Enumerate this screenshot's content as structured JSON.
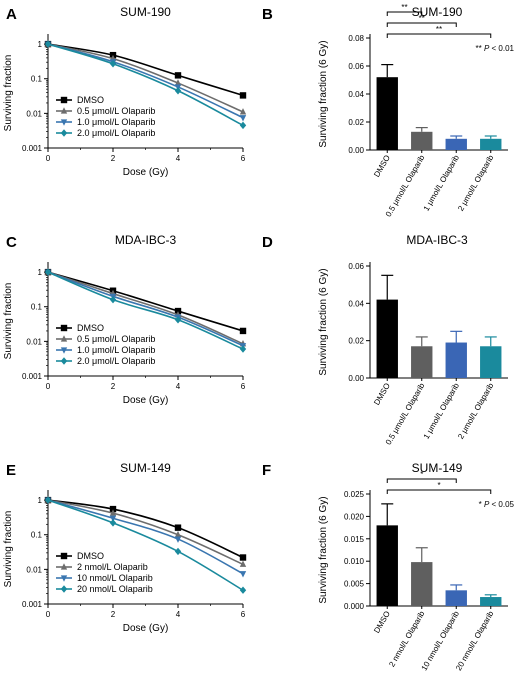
{
  "chart_data": [
    {
      "panel": "A",
      "type": "line",
      "title": "SUM-190",
      "xlabel": "Dose (Gy)",
      "ylabel": "Surviving fraction",
      "x": [
        0,
        2,
        4,
        6
      ],
      "xticks": [
        "0",
        "2",
        "4",
        "6"
      ],
      "ylog": true,
      "ylim": [
        0.001,
        1.5
      ],
      "yticks": [
        "0.001",
        "0.01",
        "0.1",
        "1"
      ],
      "legend_position": "bottom-left",
      "series": [
        {
          "name": "DMSO",
          "color": "#000000",
          "marker": "square",
          "values": [
            1,
            0.48,
            0.125,
            0.033
          ]
        },
        {
          "name": "0.5 μmol/L Olaparib",
          "color": "#6d6d6d",
          "marker": "triangle-up",
          "values": [
            1,
            0.38,
            0.075,
            0.011
          ]
        },
        {
          "name": "1.0 μmol/L Olaparib",
          "color": "#3a76b0",
          "marker": "triangle-down",
          "values": [
            1,
            0.31,
            0.058,
            0.0075
          ]
        },
        {
          "name": "2.0 μmol/L Olaparib",
          "color": "#1a8a9d",
          "marker": "diamond",
          "values": [
            1,
            0.27,
            0.045,
            0.0045
          ]
        }
      ]
    },
    {
      "panel": "B",
      "type": "bar",
      "title": "SUM-190",
      "ylabel": "Surviving fraction (6 Gy)",
      "categories": [
        "DMSO",
        "0.5 μmol/L Olaparib",
        "1 μmol/L Olaparib",
        "2 μmol/L Olaparib"
      ],
      "values": [
        0.052,
        0.013,
        0.008,
        0.008
      ],
      "errors": [
        0.009,
        0.003,
        0.002,
        0.002
      ],
      "colors": [
        "#000000",
        "#5f5f5f",
        "#3a66b5",
        "#1a8a9d"
      ],
      "ylim": [
        0,
        0.08
      ],
      "yticks": [
        "0.00",
        "0.02",
        "0.04",
        "0.06",
        "0.08"
      ],
      "significance": [
        {
          "from": 0,
          "to": 1,
          "label": "**"
        },
        {
          "from": 0,
          "to": 2,
          "label": "**"
        },
        {
          "from": 0,
          "to": 3,
          "label": "**"
        }
      ],
      "annotation": "** P < 0.01"
    },
    {
      "panel": "C",
      "type": "line",
      "title": "MDA-IBC-3",
      "xlabel": "Dose (Gy)",
      "ylabel": "Surviving fraction",
      "x": [
        0,
        2,
        4,
        6
      ],
      "xticks": [
        "0",
        "2",
        "4",
        "6"
      ],
      "ylog": true,
      "ylim": [
        0.001,
        1.5
      ],
      "yticks": [
        "0.001",
        "0.01",
        "0.1",
        "1"
      ],
      "legend_position": "bottom-left",
      "series": [
        {
          "name": "DMSO",
          "color": "#000000",
          "marker": "square",
          "values": [
            1,
            0.29,
            0.075,
            0.02
          ]
        },
        {
          "name": "0.5 μmol/L Olaparib",
          "color": "#6d6d6d",
          "marker": "triangle-up",
          "values": [
            1,
            0.24,
            0.058,
            0.0085
          ]
        },
        {
          "name": "1.0 μmol/L Olaparib",
          "color": "#3a76b0",
          "marker": "triangle-down",
          "values": [
            1,
            0.2,
            0.05,
            0.0075
          ]
        },
        {
          "name": "2.0 μmol/L Olaparib",
          "color": "#1a8a9d",
          "marker": "diamond",
          "values": [
            1,
            0.16,
            0.042,
            0.006
          ]
        }
      ]
    },
    {
      "panel": "D",
      "type": "bar",
      "title": "MDA-IBC-3",
      "ylabel": "Surviving fraction (6 Gy)",
      "categories": [
        "DMSO",
        "0.5 μmol/L Olaparib",
        "1 μmol/L Olaparib",
        "2 μmol/L Olaparib"
      ],
      "values": [
        0.042,
        0.017,
        0.019,
        0.017
      ],
      "errors": [
        0.013,
        0.005,
        0.006,
        0.005
      ],
      "colors": [
        "#000000",
        "#5f5f5f",
        "#3a66b5",
        "#1a8a9d"
      ],
      "ylim": [
        0,
        0.06
      ],
      "yticks": [
        "0.00",
        "0.02",
        "0.04",
        "0.06"
      ],
      "significance": [],
      "annotation": ""
    },
    {
      "panel": "E",
      "type": "line",
      "title": "SUM-149",
      "xlabel": "Dose (Gy)",
      "ylabel": "Surviving fraction",
      "x": [
        0,
        2,
        4,
        6
      ],
      "xticks": [
        "0",
        "2",
        "4",
        "6"
      ],
      "ylog": true,
      "ylim": [
        0.001,
        1.5
      ],
      "yticks": [
        "0.001",
        "0.01",
        "0.1",
        "1"
      ],
      "legend_position": "bottom-left",
      "series": [
        {
          "name": "DMSO",
          "color": "#000000",
          "marker": "square",
          "values": [
            1,
            0.55,
            0.16,
            0.022
          ]
        },
        {
          "name": "2 nmol/L Olaparib",
          "color": "#6d6d6d",
          "marker": "triangle-up",
          "values": [
            1,
            0.42,
            0.1,
            0.014
          ]
        },
        {
          "name": "10 nmol/L Olaparib",
          "color": "#3a76b0",
          "marker": "triangle-down",
          "values": [
            1,
            0.3,
            0.075,
            0.0075
          ]
        },
        {
          "name": "20 nmol/L Olaparib",
          "color": "#1a8a9d",
          "marker": "diamond",
          "values": [
            1,
            0.22,
            0.033,
            0.0025
          ]
        }
      ]
    },
    {
      "panel": "F",
      "type": "bar",
      "title": "SUM-149",
      "ylabel": "Surviving fraction (6 Gy)",
      "categories": [
        "DMSO",
        "2 nmol/L Olaparib",
        "10 nmol/L Olaparib",
        "20 nmol/L Olaparib"
      ],
      "values": [
        0.018,
        0.0098,
        0.0035,
        0.002
      ],
      "errors": [
        0.0048,
        0.0032,
        0.0012,
        0.0005
      ],
      "colors": [
        "#000000",
        "#5f5f5f",
        "#3a66b5",
        "#1a8a9d"
      ],
      "ylim": [
        0,
        0.025
      ],
      "yticks": [
        "0.000",
        "0.005",
        "0.010",
        "0.015",
        "0.020",
        "0.025"
      ],
      "significance": [
        {
          "from": 0,
          "to": 2,
          "label": "*"
        },
        {
          "from": 0,
          "to": 3,
          "label": "*"
        }
      ],
      "annotation": "* P < 0.05"
    }
  ]
}
